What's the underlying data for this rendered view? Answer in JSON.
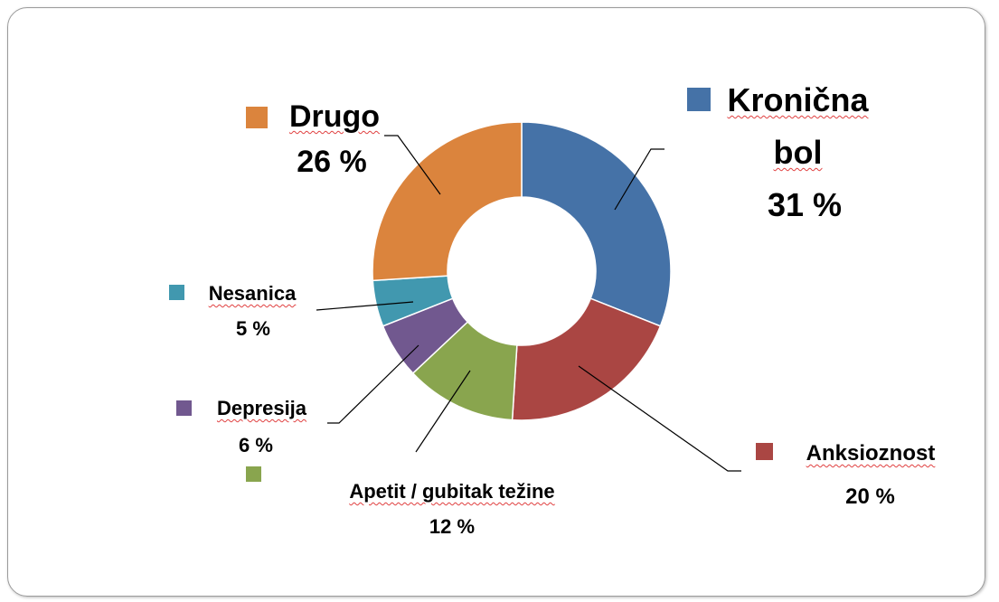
{
  "chart_data": {
    "type": "pie",
    "donut": true,
    "categories": [
      "Kronična bol",
      "Anksioznost",
      "Apetit / gubitak težine",
      "Depresija",
      "Nesanica",
      "Drugo"
    ],
    "values": [
      31,
      20,
      12,
      6,
      5,
      26
    ],
    "value_labels": [
      "31 %",
      "20 %",
      "12 %",
      "6 %",
      "5 %",
      "26 %"
    ],
    "colors": [
      "#4572a7",
      "#aa4643",
      "#89a54e",
      "#71588f",
      "#4198af",
      "#db843d"
    ]
  }
}
